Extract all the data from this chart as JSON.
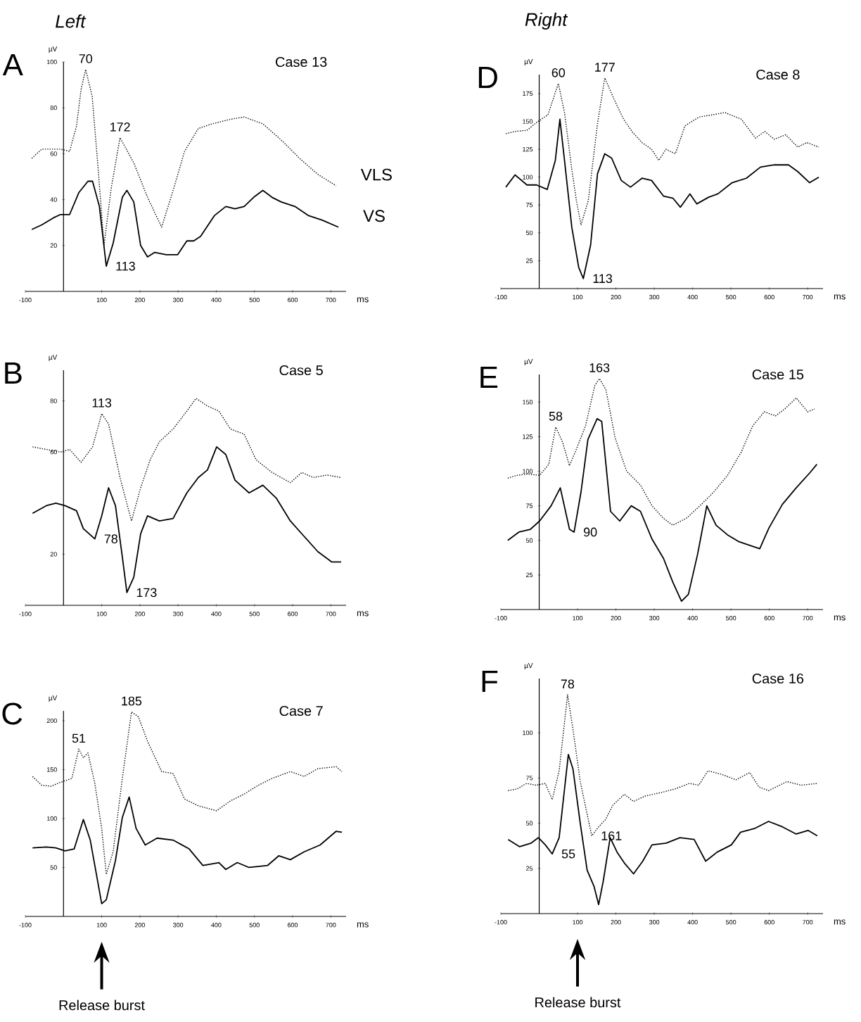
{
  "chart_data": [
    {
      "type": "line",
      "title": "Case 13",
      "xlabel": "ms",
      "ylabel": "µV",
      "xlim": [
        -100,
        740
      ],
      "ylim": [
        0,
        100
      ],
      "xticks": [
        -100,
        100,
        200,
        300,
        400,
        500,
        600,
        700
      ],
      "yticks": [
        20,
        40,
        60,
        80,
        100
      ],
      "annotations": [
        "A",
        "Left",
        {
          "text": "70",
          "x": 58,
          "y": 96.7
        },
        {
          "text": "172",
          "x": 148,
          "y": 67
        },
        {
          "text": "113",
          "x": 112,
          "y": 11
        }
      ],
      "series": [
        {
          "name": "VLS",
          "color": "#000000",
          "line_style": "dotted",
          "x": [
            -83,
            -57,
            -33,
            -8,
            16,
            34,
            46,
            58,
            75,
            90,
            106,
            125,
            148,
            184,
            220,
            257,
            287,
            317,
            353,
            389,
            437,
            473,
            522,
            570,
            618,
            666,
            714
          ],
          "values": [
            58,
            62,
            62,
            62,
            61,
            72,
            88,
            96.7,
            85,
            55,
            20,
            45,
            67,
            56,
            41,
            28,
            44,
            61,
            71,
            73,
            75,
            76,
            73,
            66,
            58,
            51,
            46
          ]
        },
        {
          "name": "VS",
          "color": "#000000",
          "line_style": "solid",
          "x": [
            -83,
            -57,
            -27,
            -8,
            16,
            40,
            64,
            76,
            94,
            112,
            130,
            154,
            166,
            184,
            202,
            220,
            239,
            269,
            299,
            323,
            341,
            359,
            395,
            425,
            449,
            473,
            498,
            522,
            546,
            570,
            606,
            642,
            678,
            720
          ],
          "values": [
            27,
            29,
            32,
            33.5,
            33.5,
            43,
            48,
            48,
            37,
            11,
            21,
            41,
            44,
            39,
            20,
            15,
            17,
            16,
            16,
            22,
            22,
            24,
            33,
            37,
            36,
            37,
            41,
            44,
            41,
            39,
            37,
            33,
            31,
            28
          ]
        }
      ]
    },
    {
      "type": "line",
      "title": "Case 8",
      "xlabel": "ms",
      "ylabel": "µV",
      "xlim": [
        -100,
        740
      ],
      "ylim": [
        0,
        192
      ],
      "xticks": [
        -100,
        100,
        200,
        300,
        400,
        500,
        600,
        700
      ],
      "yticks": [
        25,
        50,
        75,
        100,
        125,
        150,
        175
      ],
      "annotations": [
        "D",
        "Right",
        {
          "text": "60",
          "x": 50,
          "y": 184
        },
        {
          "text": "177",
          "x": 171,
          "y": 189
        },
        {
          "text": "113",
          "x": 115,
          "y": 9
        }
      ],
      "series": [
        {
          "color": "#000000",
          "line_style": "dotted",
          "x": [
            -87,
            -63,
            -32,
            -7,
            23,
            42,
            50,
            66,
            85,
            97,
            109,
            128,
            152,
            171,
            195,
            220,
            244,
            268,
            293,
            312,
            330,
            355,
            380,
            417,
            454,
            484,
            527,
            564,
            588,
            613,
            643,
            674,
            698,
            729
          ],
          "values": [
            139,
            141,
            142,
            149,
            156,
            176,
            184,
            158,
            107,
            79,
            57,
            79,
            148,
            189,
            170,
            152,
            140,
            131,
            125,
            115,
            125,
            121,
            146,
            154,
            156,
            158,
            152,
            135,
            141,
            134,
            138,
            127,
            131,
            127
          ]
        },
        {
          "color": "#000000",
          "line_style": "solid",
          "x": [
            -87,
            -63,
            -32,
            -7,
            21,
            42,
            54,
            66,
            85,
            103,
            115,
            134,
            152,
            171,
            189,
            214,
            238,
            268,
            293,
            324,
            349,
            368,
            393,
            411,
            442,
            466,
            503,
            540,
            577,
            613,
            650,
            674,
            705,
            729
          ],
          "values": [
            91,
            102,
            93,
            93,
            89,
            115,
            152,
            115,
            55,
            19,
            9,
            39,
            103,
            121,
            117,
            97,
            91,
            99,
            97,
            83,
            81,
            73,
            85,
            76,
            82,
            85,
            95,
            99,
            109,
            111,
            111,
            105,
            95,
            100
          ]
        }
      ]
    },
    {
      "type": "line",
      "title": "Case 5",
      "xlabel": "ms",
      "ylabel": "µV",
      "xlim": [
        -100,
        740
      ],
      "ylim": [
        0,
        92
      ],
      "xticks": [
        -100,
        100,
        200,
        300,
        400,
        500,
        600,
        700
      ],
      "yticks": [
        20,
        60,
        80
      ],
      "annotations": [
        "B",
        {
          "text": "113",
          "x": 100,
          "y": 75
        },
        {
          "text": "78",
          "x": 82,
          "y": 26
        },
        {
          "text": "173",
          "x": 166,
          "y": 5
        }
      ],
      "series": [
        {
          "color": "#000000",
          "line_style": "dotted",
          "x": [
            -81,
            -45,
            -8,
            16,
            46,
            76,
            100,
            118,
            148,
            178,
            202,
            227,
            251,
            287,
            323,
            347,
            377,
            407,
            437,
            473,
            504,
            546,
            594,
            624,
            654,
            690,
            727
          ],
          "values": [
            62,
            61,
            60,
            61,
            56,
            62,
            75,
            71,
            50,
            33,
            46,
            57,
            64,
            69,
            76,
            81,
            78,
            76,
            69,
            67,
            57,
            52,
            48,
            52,
            50,
            51,
            50
          ]
        },
        {
          "color": "#000000",
          "line_style": "solid",
          "x": [
            -81,
            -45,
            -20,
            4,
            34,
            52,
            82,
            100,
            118,
            136,
            154,
            166,
            184,
            202,
            220,
            251,
            287,
            323,
            353,
            377,
            401,
            425,
            449,
            486,
            522,
            557,
            594,
            630,
            666,
            702,
            727
          ],
          "values": [
            36,
            39,
            40,
            39,
            37,
            30,
            26,
            35,
            46,
            39,
            19,
            5,
            11,
            28,
            35,
            33,
            34,
            44,
            50,
            53,
            62,
            59,
            49,
            44,
            47,
            42,
            33,
            27,
            21,
            17,
            17
          ]
        }
      ]
    },
    {
      "type": "line",
      "title": "Case 15",
      "xlabel": "ms",
      "ylabel": "µV",
      "xlim": [
        -100,
        740
      ],
      "ylim": [
        0,
        170
      ],
      "xticks": [
        -100,
        100,
        200,
        300,
        400,
        500,
        600,
        700
      ],
      "yticks": [
        25,
        50,
        75,
        100,
        125,
        150
      ],
      "annotations": [
        "E",
        {
          "text": "58",
          "x": 43,
          "y": 132
        },
        {
          "text": "163",
          "x": 157,
          "y": 167
        },
        {
          "text": "90",
          "x": 91,
          "y": 56
        }
      ],
      "series": [
        {
          "color": "#000000",
          "line_style": "dotted",
          "x": [
            -82,
            -59,
            -29,
            1,
            25,
            43,
            61,
            79,
            97,
            121,
            145,
            157,
            174,
            198,
            228,
            264,
            294,
            324,
            348,
            384,
            419,
            455,
            491,
            527,
            557,
            587,
            616,
            640,
            670,
            700,
            718
          ],
          "values": [
            95,
            97,
            98,
            97,
            105,
            132,
            121,
            104,
            116,
            133,
            162,
            167,
            159,
            124,
            100,
            90,
            75,
            66,
            61,
            66,
            75,
            85,
            97,
            114,
            133,
            143,
            140,
            145,
            153,
            143,
            145
          ]
        },
        {
          "color": "#000000",
          "line_style": "solid",
          "x": [
            -82,
            -53,
            -23,
            1,
            31,
            55,
            79,
            91,
            109,
            127,
            151,
            163,
            186,
            210,
            240,
            264,
            294,
            324,
            348,
            371,
            389,
            413,
            437,
            461,
            491,
            521,
            575,
            599,
            634,
            670,
            706,
            724
          ],
          "values": [
            50,
            56,
            58,
            64,
            75,
            88,
            58,
            56,
            85,
            123,
            138,
            136,
            71,
            64,
            75,
            71,
            51,
            37,
            20,
            6,
            11,
            40,
            75,
            61,
            54,
            49,
            44,
            59,
            76,
            88,
            99,
            105
          ]
        }
      ]
    },
    {
      "type": "line",
      "title": "Case 7",
      "xlabel": "ms",
      "ylabel": "µV",
      "xlim": [
        -100,
        740
      ],
      "ylim": [
        0,
        210
      ],
      "xticks": [
        -100,
        100,
        200,
        300,
        400,
        500,
        600,
        700
      ],
      "yticks": [
        50,
        100,
        150,
        200
      ],
      "annotations": [
        "C",
        {
          "text": "51",
          "x": 40,
          "y": 171
        },
        {
          "text": "185",
          "x": 178,
          "y": 209
        },
        "Release burst"
      ],
      "series": [
        {
          "color": "#000000",
          "line_style": "dotted",
          "x": [
            -81,
            -57,
            -33,
            -8,
            22,
            40,
            52,
            64,
            82,
            100,
            112,
            130,
            154,
            178,
            196,
            220,
            257,
            287,
            317,
            353,
            401,
            437,
            473,
            510,
            546,
            594,
            630,
            666,
            714,
            729
          ],
          "values": [
            143,
            134,
            133,
            137,
            141,
            171,
            162,
            167,
            136,
            90,
            43,
            66,
            141,
            209,
            204,
            179,
            148,
            146,
            120,
            113,
            108,
            118,
            125,
            134,
            141,
            148,
            143,
            151,
            153,
            148
          ]
        },
        {
          "color": "#000000",
          "line_style": "solid",
          "x": [
            -81,
            -45,
            -20,
            4,
            28,
            52,
            70,
            82,
            100,
            112,
            136,
            154,
            172,
            190,
            214,
            245,
            287,
            329,
            365,
            407,
            425,
            455,
            486,
            534,
            564,
            594,
            630,
            672,
            714,
            729
          ],
          "values": [
            70,
            71,
            70,
            67,
            69,
            99,
            78,
            52,
            13,
            17,
            57,
            101,
            122,
            90,
            73,
            80,
            78,
            69,
            52,
            55,
            48,
            55,
            50,
            52,
            62,
            58,
            66,
            73,
            87,
            86
          ]
        }
      ]
    },
    {
      "type": "line",
      "title": "Case 16",
      "xlabel": "ms",
      "ylabel": "µV",
      "xlim": [
        -100,
        740
      ],
      "ylim": [
        0,
        130
      ],
      "xticks": [
        -100,
        100,
        200,
        300,
        400,
        500,
        600,
        700
      ],
      "yticks": [
        25,
        50,
        75,
        100
      ],
      "annotations": [
        "F",
        {
          "text": "78",
          "x": 74,
          "y": 121
        },
        {
          "text": "161",
          "x": 137,
          "y": 43
        },
        {
          "text": "55",
          "x": 34,
          "y": 33
        },
        "Release burst"
      ],
      "series": [
        {
          "color": "#000000",
          "line_style": "dotted",
          "x": [
            -81,
            -57,
            -33,
            -8,
            16,
            34,
            52,
            64,
            74,
            88,
            107,
            125,
            137,
            155,
            173,
            192,
            222,
            246,
            276,
            319,
            355,
            392,
            416,
            440,
            476,
            513,
            549,
            573,
            598,
            646,
            683,
            725
          ],
          "values": [
            68,
            69,
            72,
            71,
            72,
            63,
            79,
            102,
            121,
            102,
            73,
            55,
            43,
            48,
            52,
            60,
            66,
            62,
            65,
            67,
            69,
            72,
            71,
            79,
            77,
            74,
            78,
            70,
            68,
            73,
            71,
            72
          ]
        },
        {
          "color": "#000000",
          "line_style": "solid",
          "x": [
            -81,
            -51,
            -21,
            -2,
            16,
            34,
            52,
            64,
            76,
            88,
            107,
            125,
            143,
            155,
            167,
            185,
            203,
            222,
            246,
            270,
            294,
            331,
            367,
            404,
            434,
            464,
            501,
            525,
            561,
            598,
            634,
            670,
            701,
            725
          ],
          "values": [
            41,
            37,
            39,
            42,
            38,
            33,
            42,
            65,
            88,
            80,
            50,
            24,
            15,
            5,
            18,
            42,
            34,
            28,
            22,
            29,
            38,
            39,
            42,
            41,
            29,
            34,
            38,
            45,
            47,
            51,
            48,
            44,
            46,
            43
          ]
        }
      ]
    }
  ]
}
